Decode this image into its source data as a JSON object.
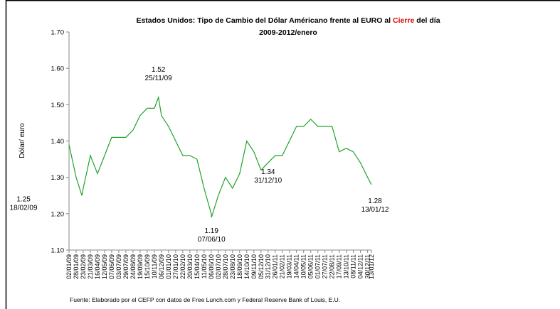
{
  "chart_data": {
    "type": "line",
    "title_parts": [
      "Estados Unidos: Tipo de Cambio del Dólar Américano frente al EURO al ",
      "Cierre",
      " del día"
    ],
    "subtitle": "2009-2012/enero",
    "y_label": "Dólar/ euro",
    "source": "Fuente: Elaborado por el CEFP con datos de Free Lunch.com y Federal Reserve Bank of Louis, E.U.",
    "x": [
      "02/01/09",
      "28/01/09",
      "18/02/09",
      "23/02/09",
      "21/03/09",
      "16/04/09",
      "12/05/09",
      "07/06/09",
      "03/07/09",
      "29/07/09",
      "24/08/09",
      "19/09/09",
      "15/10/09",
      "10/11/09",
      "25/11/09",
      "06/12/09",
      "01/01/10",
      "27/01/10",
      "22/02/10",
      "20/03/10",
      "15/04/10",
      "11/05/10",
      "06/06/10",
      "07/06/10",
      "02/07/10",
      "28/07/10",
      "23/08/10",
      "18/09/10",
      "14/10/10",
      "09/11/10",
      "05/12/10",
      "31/12/10",
      "26/01/11",
      "21/02/11",
      "19/03/11",
      "14/04/11",
      "10/05/11",
      "05/06/11",
      "01/07/11",
      "27/07/11",
      "22/08/11",
      "17/09/11",
      "13/10/11",
      "08/11/11",
      "04/12/11",
      "30/12/11",
      "13/01/12"
    ],
    "series": [
      {
        "name": "Dólar/euro",
        "color": "#1fa32a",
        "values": [
          1.39,
          1.3,
          1.25,
          1.27,
          1.36,
          1.31,
          1.36,
          1.41,
          1.41,
          1.41,
          1.43,
          1.47,
          1.49,
          1.49,
          1.52,
          1.47,
          1.44,
          1.4,
          1.36,
          1.36,
          1.35,
          1.27,
          1.2,
          1.19,
          1.25,
          1.3,
          1.27,
          1.31,
          1.4,
          1.37,
          1.32,
          1.34,
          1.36,
          1.36,
          1.4,
          1.44,
          1.44,
          1.46,
          1.44,
          1.44,
          1.44,
          1.37,
          1.38,
          1.37,
          1.34,
          1.3,
          1.28
        ]
      }
    ],
    "annotations": [
      {
        "value": 1.25,
        "date": "18/02/09"
      },
      {
        "value": 1.52,
        "date": "25/11/09"
      },
      {
        "value": 1.19,
        "date": "07/06/10"
      },
      {
        "value": 1.34,
        "date": "31/12/10"
      },
      {
        "value": 1.28,
        "date": "13/01/12"
      }
    ],
    "xticks": [
      "02/01/09",
      "28/01/09",
      "23/02/09",
      "21/03/09",
      "16/04/09",
      "12/05/09",
      "07/06/09",
      "03/07/09",
      "29/07/09",
      "24/08/09",
      "19/09/09",
      "15/10/09",
      "10/11/09",
      "06/12/09",
      "01/01/10",
      "27/01/10",
      "22/02/10",
      "20/03/10",
      "15/04/10",
      "11/05/10",
      "06/06/10",
      "02/07/10",
      "28/07/10",
      "23/08/10",
      "18/09/10",
      "14/10/10",
      "09/11/10",
      "05/12/10",
      "31/12/10",
      "26/01/11",
      "21/02/11",
      "19/03/11",
      "14/04/11",
      "10/05/11",
      "05/06/11",
      "01/07/11",
      "27/07/11",
      "22/08/11",
      "17/09/11",
      "13/10/11",
      "08/11/11",
      "04/12/11",
      "30/12/11",
      "13/01/12"
    ],
    "ylim": [
      1.1,
      1.7
    ],
    "yticks": [
      {
        "value": 1.1,
        "label": "1.10"
      },
      {
        "value": 1.2,
        "label": "1.20"
      },
      {
        "value": 1.3,
        "label": "1.30"
      },
      {
        "value": 1.4,
        "label": "1.40"
      },
      {
        "value": 1.5,
        "label": "1.50"
      },
      {
        "value": 1.6,
        "label": "1.60"
      },
      {
        "value": 1.7,
        "label": "1.70"
      }
    ],
    "grid": false
  }
}
